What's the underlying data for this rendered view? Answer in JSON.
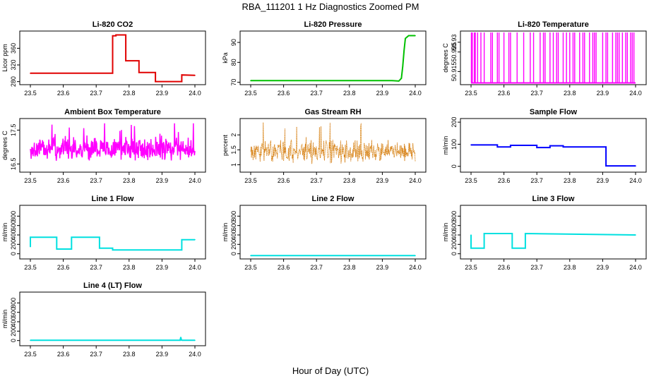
{
  "figure": {
    "title": "RBA_111201  1 Hz Diagnostics Zoomed PM",
    "xlabel": "Hour of Day (UTC)"
  },
  "chart_data": [
    {
      "type": "line",
      "title": "Li-820 CO2",
      "ylabel": "Licor ppm",
      "color": "#e00000",
      "xlim": [
        23.5,
        24.0
      ],
      "ylim": [
        276,
        398
      ],
      "yticks": [
        280,
        320,
        360
      ],
      "xticks": [
        "23.5",
        "23.6",
        "23.7",
        "23.8",
        "23.9",
        "24.0"
      ],
      "series": [
        {
          "style": "step",
          "x": [
            23.5,
            23.75,
            23.75,
            23.76,
            23.76,
            23.79,
            23.79,
            23.83,
            23.83,
            23.88,
            23.88,
            23.96,
            23.96,
            24.0
          ],
          "y": [
            300,
            300,
            390,
            390,
            392,
            392,
            330,
            330,
            302,
            302,
            280,
            280,
            296,
            295
          ]
        }
      ]
    },
    {
      "type": "line",
      "title": "Li-820 Pressure",
      "ylabel": "kPa",
      "color": "#00c000",
      "xlim": [
        23.5,
        24.0
      ],
      "ylim": [
        69.5,
        95
      ],
      "yticks": [
        70,
        80,
        90
      ],
      "xticks": [
        "23.5",
        "23.6",
        "23.7",
        "23.8",
        "23.9",
        "24.0"
      ],
      "series": [
        {
          "style": "line",
          "x": [
            23.5,
            23.93,
            23.95,
            23.958,
            23.962,
            23.966,
            23.97,
            23.98,
            24.0
          ],
          "y": [
            70.8,
            70.8,
            70.6,
            72,
            78,
            86,
            92,
            93.4,
            93.4
          ]
        }
      ]
    },
    {
      "type": "line",
      "title": "Li-820 Temperature",
      "ylabel": "degrees C",
      "color": "#ff00ff",
      "xlim": [
        23.5,
        24.0
      ],
      "ylim": [
        50.909,
        50.935
      ],
      "yticks": [
        50.915,
        50.925,
        50.93
      ],
      "xticks": [
        "23.5",
        "23.6",
        "23.7",
        "23.8",
        "23.9",
        "24.0"
      ],
      "series": [
        {
          "style": "spikes",
          "base": 50.9092,
          "top": 50.935,
          "x": [
            23.501,
            23.504,
            23.51,
            23.513,
            23.52,
            23.53,
            23.54,
            23.56,
            23.565,
            23.58,
            23.585,
            23.6,
            23.615,
            23.62,
            23.64,
            23.66,
            23.68,
            23.69,
            23.71,
            23.72,
            23.725,
            23.74,
            23.75,
            23.76,
            23.765,
            23.78,
            23.79,
            23.8,
            23.81,
            23.815,
            23.83,
            23.84,
            23.845,
            23.86,
            23.87,
            23.875,
            23.88,
            23.9,
            23.91,
            23.915,
            23.93,
            23.94,
            23.945,
            23.95,
            23.96,
            23.97,
            23.975,
            23.985,
            23.99,
            23.995
          ]
        }
      ]
    },
    {
      "type": "line",
      "title": "Ambient Box Temperature",
      "ylabel": "degrees C",
      "color": "#ff00ff",
      "xlim": [
        23.5,
        24.0
      ],
      "ylim": [
        16.3,
        17.8
      ],
      "yticks": [
        16.5,
        17.5
      ],
      "xticks": [
        "23.5",
        "23.6",
        "23.7",
        "23.8",
        "23.9",
        "24.0"
      ],
      "series": [
        {
          "style": "noise",
          "center": 16.95,
          "amp": 0.38,
          "min": 16.35,
          "max": 17.7
        }
      ]
    },
    {
      "type": "scatter",
      "title": "Gas Stream RH",
      "ylabel": "percent",
      "color": "#e09000",
      "xlim": [
        23.5,
        24.0
      ],
      "ylim": [
        0.8,
        2.5
      ],
      "yticks": [
        1.0,
        1.5,
        2.0
      ],
      "xticks": [
        "23.5",
        "23.6",
        "23.7",
        "23.8",
        "23.9",
        "24.0"
      ],
      "series": [
        {
          "style": "noise",
          "center": 1.45,
          "amp": 0.45,
          "min": 0.95,
          "max": 2.45
        }
      ]
    },
    {
      "type": "line",
      "title": "Sample Flow",
      "ylabel": "ml/min",
      "color": "#0000ff",
      "xlim": [
        23.5,
        24.0
      ],
      "ylim": [
        -20,
        210
      ],
      "yticks": [
        0,
        100,
        200
      ],
      "xticks": [
        "23.5",
        "23.6",
        "23.7",
        "23.8",
        "23.9",
        "24.0"
      ],
      "series": [
        {
          "style": "step",
          "x": [
            23.5,
            23.58,
            23.58,
            23.62,
            23.62,
            23.7,
            23.7,
            23.74,
            23.74,
            23.78,
            23.78,
            23.91,
            23.91,
            24.0
          ],
          "y": [
            97,
            97,
            88,
            88,
            95,
            95,
            85,
            85,
            93,
            93,
            88,
            88,
            2,
            2
          ]
        }
      ]
    },
    {
      "type": "line",
      "title": "Line 1 Flow",
      "ylabel": "ml/min",
      "color": "#00e0e0",
      "xlim": [
        23.5,
        24.0
      ],
      "ylim": [
        -80,
        1000
      ],
      "yticks": [
        0,
        200,
        400,
        600,
        800
      ],
      "xticks": [
        "23.5",
        "23.6",
        "23.7",
        "23.8",
        "23.9",
        "24.0"
      ],
      "series": [
        {
          "style": "step",
          "x": [
            23.5,
            23.5,
            23.58,
            23.58,
            23.625,
            23.625,
            23.71,
            23.71,
            23.75,
            23.75,
            23.96,
            23.96,
            24.0
          ],
          "y": [
            150,
            350,
            350,
            100,
            100,
            350,
            350,
            120,
            120,
            80,
            80,
            300,
            300
          ]
        }
      ]
    },
    {
      "type": "line",
      "title": "Line 2 Flow",
      "ylabel": "ml/min",
      "color": "#00e0e0",
      "xlim": [
        23.5,
        24.0
      ],
      "ylim": [
        -80,
        1000
      ],
      "yticks": [
        0,
        200,
        400,
        600,
        800
      ],
      "xticks": [
        "23.5",
        "23.6",
        "23.7",
        "23.8",
        "23.9",
        "24.0"
      ],
      "series": [
        {
          "style": "line",
          "x": [
            23.5,
            24.0
          ],
          "y": [
            -40,
            -40
          ]
        }
      ]
    },
    {
      "type": "line",
      "title": "Line 3 Flow",
      "ylabel": "ml/min",
      "color": "#00e0e0",
      "xlim": [
        23.5,
        24.0
      ],
      "ylim": [
        -80,
        1000
      ],
      "yticks": [
        0,
        200,
        400,
        600,
        800
      ],
      "xticks": [
        "23.5",
        "23.6",
        "23.7",
        "23.8",
        "23.9",
        "24.0"
      ],
      "series": [
        {
          "style": "step",
          "x": [
            23.5,
            23.5,
            23.505,
            23.505,
            23.54,
            23.54,
            23.625,
            23.625,
            23.665,
            23.665,
            24.0
          ],
          "y": [
            400,
            120,
            120,
            120,
            120,
            430,
            430,
            120,
            120,
            430,
            400
          ]
        }
      ]
    },
    {
      "type": "line",
      "title": "Line 4 (LT) Flow",
      "ylabel": "ml/min",
      "color": "#00e0e0",
      "xlim": [
        23.5,
        24.0
      ],
      "ylim": [
        -80,
        1000
      ],
      "yticks": [
        0,
        200,
        400,
        600,
        800
      ],
      "xticks": [
        "23.5",
        "23.6",
        "23.7",
        "23.8",
        "23.9",
        "24.0"
      ],
      "series": [
        {
          "style": "line",
          "x": [
            23.5,
            23.955,
            23.957,
            23.959,
            23.962,
            24.0
          ],
          "y": [
            5,
            5,
            70,
            10,
            5,
            5
          ]
        }
      ]
    }
  ]
}
